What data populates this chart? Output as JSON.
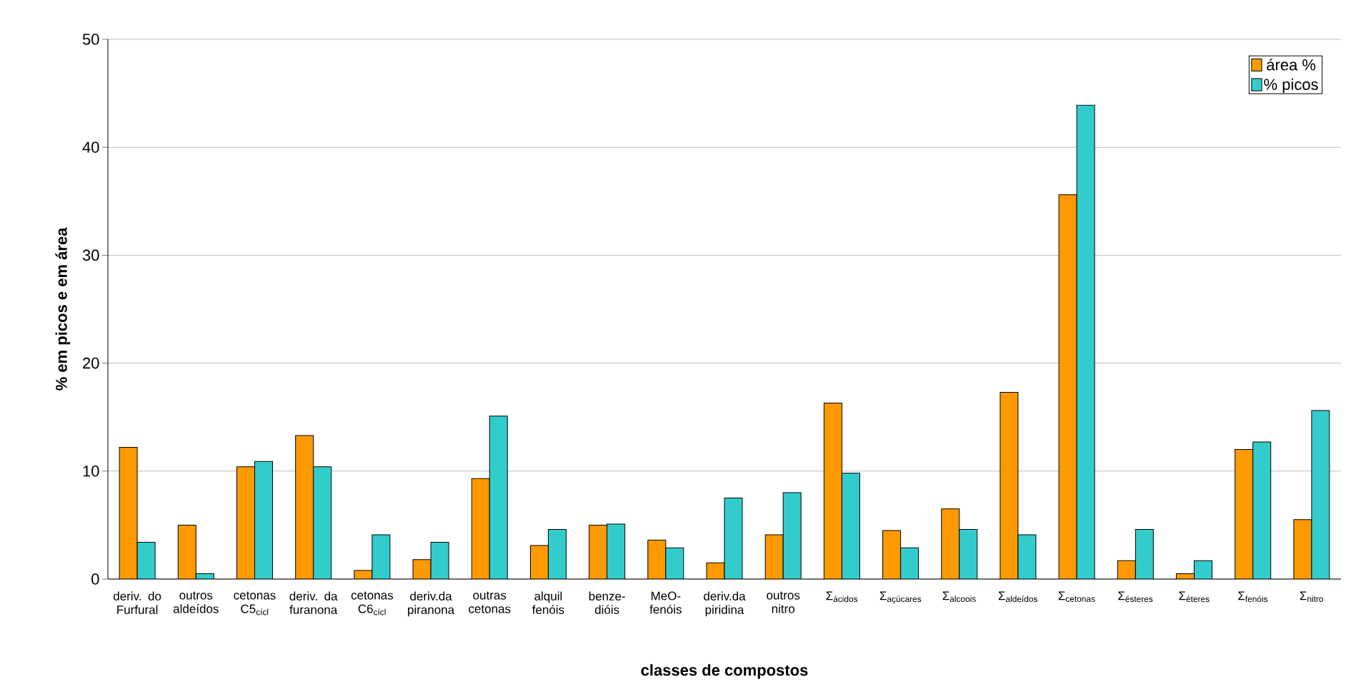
{
  "chart_data": {
    "type": "bar",
    "xlabel": "classes de compostos",
    "ylabel": "% em picos e em área",
    "categories": [
      "deriv. do Furfural",
      "outros aldeídos",
      "cetonas C5$_{cícl}$",
      "deriv. da furanona",
      "cetonas C6$_{cícl}$",
      "deriv.da piranona",
      "outras cetonas",
      "alquil fenóis",
      "benze-dióis",
      "MeO-fenóis",
      "deriv.da piridina",
      "outros nitro",
      "Σ$_{ácidos}$",
      "Σ$_{açúcares}$",
      "Σ$_{alcoois}$",
      "Σ$_{aldeídos}$",
      "Σ$_{cetonas}$",
      "Σ$_{ésteres}$",
      "Σ$_{éteres}$",
      "Σ$_{fenóis}$",
      "Σ$_{nitro}$"
    ],
    "series": [
      {
        "name": "área %",
        "color": "#ff9900",
        "values": [
          12.2,
          5.0,
          10.4,
          13.3,
          0.8,
          1.8,
          9.3,
          3.1,
          5.0,
          3.6,
          1.5,
          4.1,
          16.3,
          4.5,
          6.5,
          17.3,
          35.6,
          1.7,
          0.5,
          12.0,
          5.5
        ]
      },
      {
        "name": "% picos",
        "color": "#33cccc",
        "values": [
          3.4,
          0.5,
          10.9,
          10.4,
          4.1,
          3.4,
          15.1,
          4.6,
          5.1,
          2.9,
          7.5,
          8.0,
          9.8,
          2.9,
          4.6,
          4.1,
          43.9,
          4.6,
          1.7,
          12.7,
          15.6
        ]
      }
    ],
    "ylim": [
      0,
      50
    ],
    "yticks": [
      0,
      10,
      20,
      30,
      40,
      50
    ],
    "grid": "y",
    "legend": "top right"
  }
}
